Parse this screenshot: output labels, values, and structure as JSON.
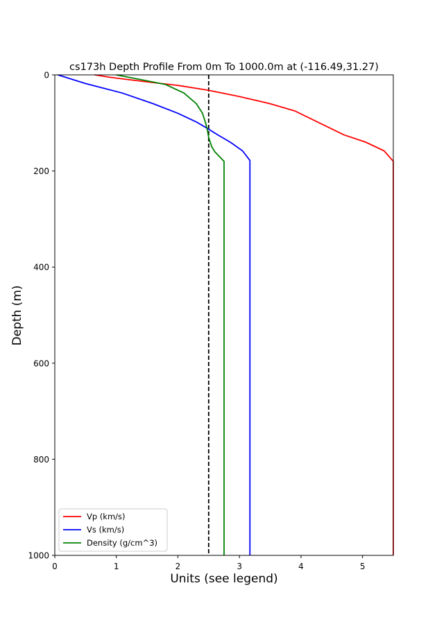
{
  "chart_data": {
    "type": "line",
    "title": "cs173h Depth Profile From 0m To 1000.0m at (-116.49,31.27)",
    "xlabel": "Units (see legend)",
    "ylabel": "Depth (m)",
    "xlim": [
      0,
      5.5
    ],
    "ylim": [
      0,
      1000
    ],
    "y_inverted": true,
    "x_ticks": [
      "0",
      "1",
      "2",
      "3",
      "4",
      "5"
    ],
    "y_ticks": [
      "0",
      "200",
      "400",
      "600",
      "800",
      "1000"
    ],
    "grid": false,
    "legend_position": "lower-left",
    "reference_line": {
      "x": 2.5,
      "style": "dashed",
      "color": "#000000"
    },
    "series": [
      {
        "name": "Vp (km/s)",
        "color": "#ff0000",
        "points": [
          [
            0.65,
            0
          ],
          [
            0.9,
            5
          ],
          [
            1.2,
            10
          ],
          [
            1.6,
            16
          ],
          [
            2.0,
            22
          ],
          [
            2.5,
            32
          ],
          [
            3.0,
            45
          ],
          [
            3.5,
            60
          ],
          [
            3.9,
            75
          ],
          [
            4.3,
            100
          ],
          [
            4.7,
            125
          ],
          [
            5.05,
            140
          ],
          [
            5.35,
            158
          ],
          [
            5.5,
            180
          ],
          [
            5.5,
            1000
          ]
        ]
      },
      {
        "name": "Vs (km/s)",
        "color": "#0000ff",
        "points": [
          [
            0.05,
            0
          ],
          [
            0.5,
            18
          ],
          [
            1.1,
            38
          ],
          [
            1.6,
            60
          ],
          [
            2.0,
            80
          ],
          [
            2.3,
            98
          ],
          [
            2.5,
            113
          ],
          [
            2.65,
            125
          ],
          [
            2.85,
            140
          ],
          [
            3.05,
            158
          ],
          [
            3.17,
            178
          ],
          [
            3.17,
            1000
          ]
        ]
      },
      {
        "name": "Density (g/cm^3)",
        "color": "#008000",
        "points": [
          [
            1.0,
            0
          ],
          [
            1.4,
            10
          ],
          [
            1.8,
            20
          ],
          [
            2.1,
            38
          ],
          [
            2.3,
            60
          ],
          [
            2.4,
            80
          ],
          [
            2.45,
            100
          ],
          [
            2.48,
            115
          ],
          [
            2.5,
            130
          ],
          [
            2.55,
            150
          ],
          [
            2.6,
            160
          ],
          [
            2.75,
            180
          ],
          [
            2.75,
            1000
          ]
        ]
      }
    ]
  }
}
